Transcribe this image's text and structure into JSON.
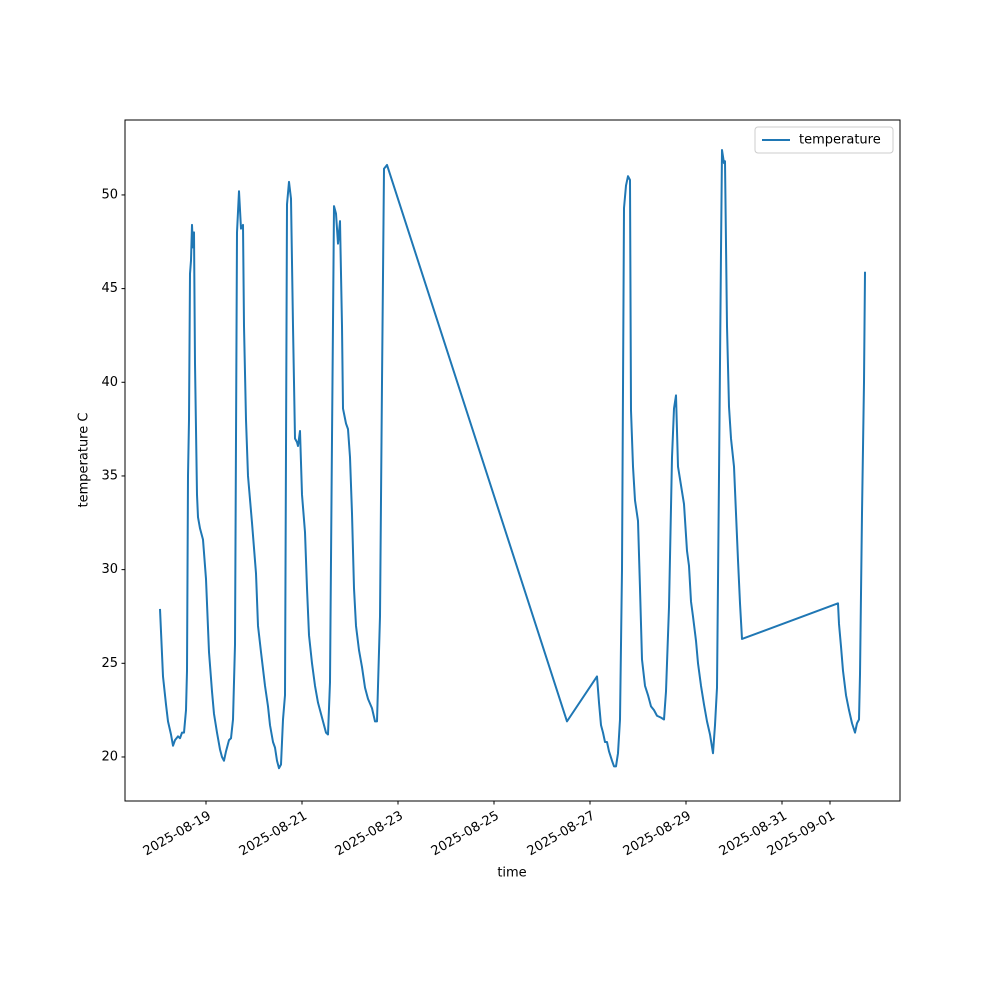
{
  "chart_data": {
    "type": "line",
    "xlabel": "time",
    "ylabel": "temperature C",
    "x": [
      "2025-08-18T01:00",
      "2025-08-18T02:30",
      "2025-08-18T04:00",
      "2025-08-18T05:00",
      "2025-08-18T06:30",
      "2025-08-18T07:30",
      "2025-08-18T08:30",
      "2025-08-18T10:00",
      "2025-08-18T11:00",
      "2025-08-18T12:00",
      "2025-08-18T13:00",
      "2025-08-18T14:00",
      "2025-08-18T14:30",
      "2025-08-18T15:00",
      "2025-08-18T15:30",
      "2025-08-18T16:00",
      "2025-08-18T16:30",
      "2025-08-18T17:00",
      "2025-08-18T17:30",
      "2025-08-18T18:00",
      "2025-08-18T18:30",
      "2025-08-18T19:30",
      "2025-08-18T20:00",
      "2025-08-18T21:00",
      "2025-08-18T22:30",
      "2025-08-19T00:00",
      "2025-08-19T01:30",
      "2025-08-19T03:00",
      "2025-08-19T04:00",
      "2025-08-19T05:30",
      "2025-08-19T07:00",
      "2025-08-19T08:00",
      "2025-08-19T09:00",
      "2025-08-19T10:00",
      "2025-08-19T11:30",
      "2025-08-19T12:30",
      "2025-08-19T13:30",
      "2025-08-19T14:30",
      "2025-08-19T15:30",
      "2025-08-19T16:30",
      "2025-08-19T17:30",
      "2025-08-19T18:30",
      "2025-08-19T19:00",
      "2025-08-19T20:00",
      "2025-08-19T21:00",
      "2025-08-19T23:00",
      "2025-08-20T01:00",
      "2025-08-20T02:00",
      "2025-08-20T03:30",
      "2025-08-20T04:30",
      "2025-08-20T05:30",
      "2025-08-20T07:00",
      "2025-08-20T08:00",
      "2025-08-20T09:30",
      "2025-08-20T10:30",
      "2025-08-20T11:30",
      "2025-08-20T12:30",
      "2025-08-20T13:30",
      "2025-08-20T14:30",
      "2025-08-20T15:30",
      "2025-08-20T16:30",
      "2025-08-20T17:30",
      "2025-08-20T18:30",
      "2025-08-20T19:30",
      "2025-08-20T20:30",
      "2025-08-20T21:30",
      "2025-08-20T22:00",
      "2025-08-20T23:00",
      "2025-08-21T00:00",
      "2025-08-21T01:30",
      "2025-08-21T02:30",
      "2025-08-21T03:30",
      "2025-08-21T05:00",
      "2025-08-21T06:30",
      "2025-08-21T08:00",
      "2025-08-21T09:30",
      "2025-08-21T11:00",
      "2025-08-21T12:00",
      "2025-08-21T13:00",
      "2025-08-21T14:00",
      "2025-08-21T15:00",
      "2025-08-21T16:00",
      "2025-08-21T17:00",
      "2025-08-21T18:00",
      "2025-08-21T19:00",
      "2025-08-21T20:00",
      "2025-08-21T20:30",
      "2025-08-21T22:00",
      "2025-08-21T23:00",
      "2025-08-22T00:00",
      "2025-08-22T01:00",
      "2025-08-22T02:00",
      "2025-08-22T03:00",
      "2025-08-22T04:30",
      "2025-08-22T06:00",
      "2025-08-22T07:30",
      "2025-08-22T09:00",
      "2025-08-22T11:00",
      "2025-08-22T12:30",
      "2025-08-22T13:30",
      "2025-08-22T15:00",
      "2025-08-22T16:00",
      "2025-08-22T17:00",
      "2025-08-22T18:30",
      "2025-08-26T12:30",
      "2025-08-27T03:30",
      "2025-08-27T04:30",
      "2025-08-27T05:30",
      "2025-08-27T06:30",
      "2025-08-27T07:30",
      "2025-08-27T08:30",
      "2025-08-27T09:30",
      "2025-08-27T11:00",
      "2025-08-27T12:00",
      "2025-08-27T13:00",
      "2025-08-27T14:00",
      "2025-08-27T15:00",
      "2025-08-27T16:00",
      "2025-08-27T17:00",
      "2025-08-27T18:00",
      "2025-08-27T19:00",
      "2025-08-27T20:00",
      "2025-08-27T20:30",
      "2025-08-27T21:30",
      "2025-08-27T22:30",
      "2025-08-28T00:00",
      "2025-08-28T01:00",
      "2025-08-28T02:00",
      "2025-08-28T03:30",
      "2025-08-28T05:00",
      "2025-08-28T06:30",
      "2025-08-28T08:00",
      "2025-08-28T09:30",
      "2025-08-28T11:30",
      "2025-08-28T13:00",
      "2025-08-28T14:00",
      "2025-08-28T15:30",
      "2025-08-28T17:00",
      "2025-08-28T18:00",
      "2025-08-28T19:00",
      "2025-08-28T20:00",
      "2025-08-28T21:30",
      "2025-08-28T23:00",
      "2025-08-29T00:30",
      "2025-08-29T01:30",
      "2025-08-29T02:30",
      "2025-08-29T03:30",
      "2025-08-29T05:00",
      "2025-08-29T06:00",
      "2025-08-29T07:30",
      "2025-08-29T09:00",
      "2025-08-29T10:30",
      "2025-08-29T12:00",
      "2025-08-29T13:30",
      "2025-08-29T14:30",
      "2025-08-29T15:30",
      "2025-08-29T16:30",
      "2025-08-29T17:30",
      "2025-08-29T18:00",
      "2025-08-29T19:00",
      "2025-08-29T19:30",
      "2025-08-29T20:30",
      "2025-08-29T21:30",
      "2025-08-29T22:30",
      "2025-08-30T00:00",
      "2025-08-30T01:00",
      "2025-08-30T02:00",
      "2025-08-30T03:00",
      "2025-08-30T04:00",
      "2025-09-01T04:00",
      "2025-09-01T04:30",
      "2025-09-01T05:30",
      "2025-09-01T06:30",
      "2025-09-01T08:00",
      "2025-09-01T09:30",
      "2025-09-01T11:00",
      "2025-09-01T12:30",
      "2025-09-01T13:30",
      "2025-09-01T14:30",
      "2025-09-01T15:00",
      "2025-09-01T16:00",
      "2025-09-01T17:00",
      "2025-09-01T17:30"
    ],
    "series": [
      {
        "name": "temperature",
        "color": "#1f77b4",
        "values": [
          27.9,
          24.3,
          22.8,
          21.9,
          21.2,
          20.6,
          20.9,
          21.1,
          21.0,
          21.3,
          21.3,
          22.5,
          24.6,
          35,
          38,
          45.8,
          46.5,
          48.4,
          47.2,
          48.0,
          41,
          34,
          32.8,
          32.2,
          31.6,
          29.5,
          25.6,
          23.5,
          22.3,
          21.3,
          20.4,
          20.0,
          19.8,
          20.3,
          20.9,
          21.0,
          22,
          26,
          48,
          50.2,
          48.2,
          48.4,
          43,
          38,
          35,
          32.5,
          29.8,
          27,
          25.6,
          24.7,
          23.8,
          22.7,
          21.7,
          20.8,
          20.5,
          19.8,
          19.4,
          19.6,
          22,
          23.3,
          49.5,
          50.7,
          49.8,
          43,
          37,
          36.8,
          36.6,
          37.4,
          34,
          32,
          29,
          26.5,
          25,
          23.8,
          22.9,
          22.3,
          21.7,
          21.3,
          21.2,
          24,
          37,
          49.4,
          49.0,
          47.4,
          48.6,
          43,
          38.6,
          37.8,
          37.5,
          36,
          33,
          29,
          27,
          25.7,
          24.8,
          23.7,
          23.1,
          22.6,
          21.9,
          21.9,
          27.5,
          40,
          51.4,
          51.6,
          21.9,
          24.3,
          22.9,
          21.7,
          21.3,
          20.8,
          20.8,
          20.3,
          19.8,
          19.5,
          19.5,
          20.2,
          22,
          30,
          49.3,
          50.5,
          51.0,
          50.8,
          38.5,
          35.5,
          33.7,
          32.6,
          29,
          25.2,
          23.8,
          23.3,
          22.7,
          22.5,
          22.2,
          22.1,
          22.0,
          23.5,
          28,
          36,
          38.6,
          39.3,
          35.5,
          34.5,
          33.5,
          31,
          30.2,
          28.3,
          27.5,
          26.2,
          25,
          23.8,
          22.8,
          21.9,
          21.2,
          20.2,
          21.7,
          23.7,
          35,
          47,
          52.4,
          51.7,
          51.8,
          43,
          38.7,
          37,
          35.5,
          33,
          30.5,
          28.2,
          26.3,
          28.2,
          27.1,
          25.9,
          24.6,
          23.3,
          22.5,
          21.8,
          21.3,
          21.8,
          22,
          24.4,
          33,
          40,
          45.9
        ]
      }
    ],
    "xlim": [
      "2025-08-17T07:30",
      "2025-09-02T11:00"
    ],
    "xticks": [
      "2025-08-19",
      "2025-08-21",
      "2025-08-23",
      "2025-08-25",
      "2025-08-27",
      "2025-08-29",
      "2025-08-31",
      "2025-09-01"
    ],
    "ylim": [
      17.65,
      54.0
    ],
    "yticks": [
      20,
      25,
      30,
      35,
      40,
      45,
      50
    ],
    "legend": "upper right"
  }
}
